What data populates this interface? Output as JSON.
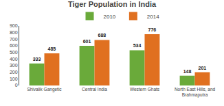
{
  "chart_data": {
    "type": "bar",
    "title": "Tiger Population in India",
    "categories": [
      "Shivalik Gangetic",
      "Central India",
      "Western Ghats",
      "North East Hills, and\nBrahmaputra"
    ],
    "series": [
      {
        "name": "2010",
        "color": "#6aaa3a",
        "values": [
          333,
          601,
          534,
          148
        ]
      },
      {
        "name": "2014",
        "color": "#e07020",
        "values": [
          485,
          688,
          776,
          201
        ]
      }
    ],
    "ylim": [
      0,
      900
    ],
    "yticks": [
      0,
      100,
      200,
      300,
      400,
      500,
      600,
      700,
      800,
      900
    ],
    "data_labels": true,
    "grid": false,
    "legend": "top"
  }
}
